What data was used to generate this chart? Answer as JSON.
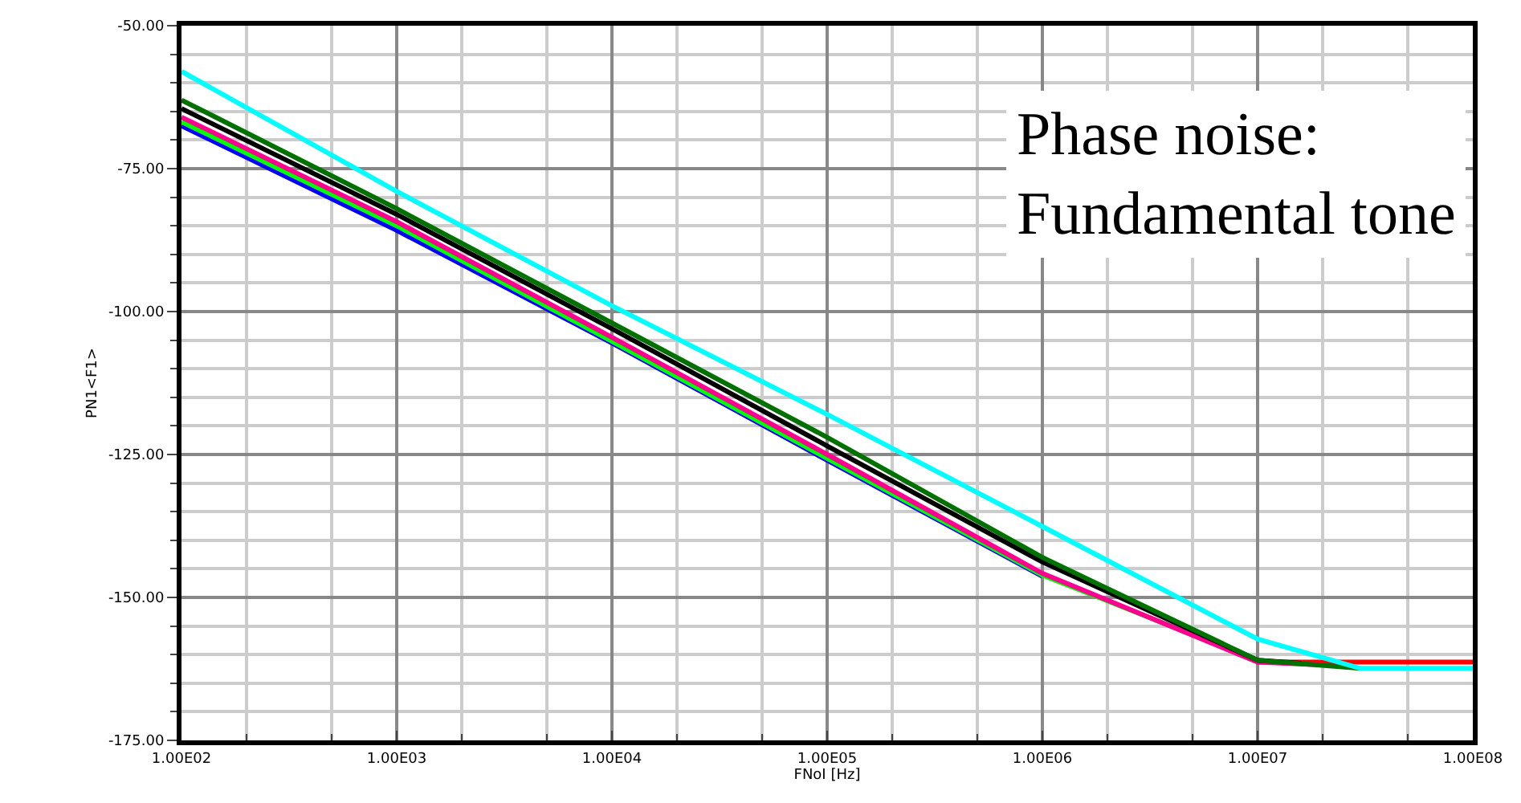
{
  "chart_data": {
    "type": "line",
    "xlabel": "FNoI [Hz]",
    "ylabel": "PN1<F1>",
    "log": "x",
    "grid": true,
    "line_style": "solid",
    "xlim": [
      100,
      100000000
    ],
    "ylim": [
      -175,
      -50
    ],
    "xticks": [
      {
        "value": 100,
        "label": "1.00E02"
      },
      {
        "value": 1000,
        "label": "1.00E03"
      },
      {
        "value": 10000,
        "label": "1.00E04"
      },
      {
        "value": 100000,
        "label": "1.00E05"
      },
      {
        "value": 1000000,
        "label": "1.00E06"
      },
      {
        "value": 10000000,
        "label": "1.00E07"
      },
      {
        "value": 100000000,
        "label": "1.00E08"
      }
    ],
    "yticks": [
      {
        "value": -50,
        "label": "-50.00"
      },
      {
        "value": -75,
        "label": "-75.00"
      },
      {
        "value": -100,
        "label": "-100.00"
      },
      {
        "value": -125,
        "label": "-125.00"
      },
      {
        "value": -150,
        "label": "-150.00"
      },
      {
        "value": -175,
        "label": "-175.00"
      }
    ],
    "annotations": [
      "Phase noise:\nFundamental tone"
    ],
    "series": [
      {
        "color": "#ff0000",
        "x": [
          10000000,
          100000000
        ],
        "values": [
          -161.3,
          -161.3
        ]
      },
      {
        "color": "#0000ff",
        "x": [
          100,
          1000,
          10000,
          100000,
          1000000
        ],
        "values": [
          -67.5,
          -85.8,
          -105.5,
          -126,
          -146.3
        ]
      },
      {
        "color": "#00ff00",
        "x": [
          100,
          1000,
          10000,
          100000,
          1000000,
          10000000
        ],
        "values": [
          -66.8,
          -85,
          -105.2,
          -125.7,
          -146.1,
          -161
        ]
      },
      {
        "color": "#ff0090",
        "x": [
          100,
          1000,
          10000,
          100000,
          1000000,
          10000000,
          20000000
        ],
        "values": [
          -66,
          -84.3,
          -104.5,
          -125,
          -145.8,
          -161.3,
          -161.8
        ]
      },
      {
        "color": "#000000",
        "x": [
          100,
          1000,
          10000,
          100000,
          1000000,
          10000000,
          16000000
        ],
        "values": [
          -64.5,
          -83,
          -103,
          -123.5,
          -143.8,
          -161,
          -161.5
        ]
      },
      {
        "color": "#007000",
        "x": [
          100,
          1000,
          10000,
          100000,
          1000000,
          10000000,
          30000000
        ],
        "values": [
          -63,
          -82,
          -102,
          -122,
          -143,
          -161,
          -162.4
        ]
      },
      {
        "color": "#00ffff",
        "x": [
          100,
          1000,
          10000,
          100000,
          1000000,
          10000000,
          30000000,
          100000000
        ],
        "values": [
          -58,
          -79,
          -99,
          -118,
          -137.6,
          -157.3,
          -162.4,
          -162.4
        ]
      }
    ]
  }
}
